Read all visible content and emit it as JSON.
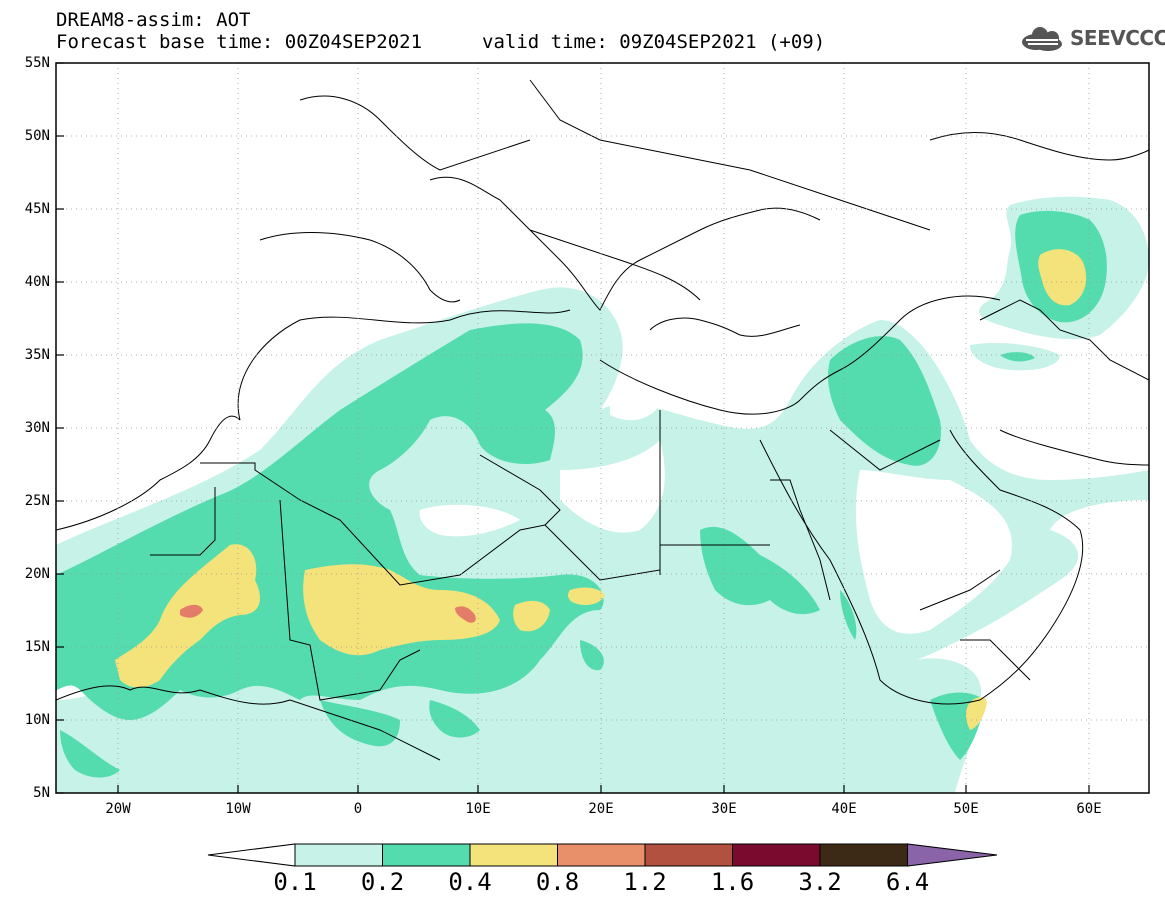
{
  "header": {
    "line1": "DREAM8-assim: AOT",
    "line2_base": "Forecast base time: 00Z04SEP2021",
    "line2_valid": "valid time: 09Z04SEP2021 (+09)"
  },
  "logo": {
    "text": "SEEVCCC",
    "icon": "cloud-icon"
  },
  "axes": {
    "lat_labels": [
      "55N",
      "50N",
      "45N",
      "40N",
      "35N",
      "30N",
      "25N",
      "20N",
      "15N",
      "10N",
      "5N"
    ],
    "lon_labels": [
      "20W",
      "10W",
      "0",
      "10E",
      "20E",
      "30E",
      "40E",
      "50E",
      "60E"
    ]
  },
  "colorbar": {
    "labels": [
      "0.1",
      "0.2",
      "0.4",
      "0.8",
      "1.2",
      "1.6",
      "3.2",
      "6.4"
    ],
    "colors": [
      "#ffffff",
      "#c6f2e8",
      "#55dcae",
      "#f4e27a",
      "#e8906a",
      "#b2513f",
      "#7a0a2e",
      "#3c2a16",
      "#8a64a8"
    ]
  },
  "map_colors": {
    "low": "#c6f2e8",
    "mid": "#55dcae",
    "high": "#f4e27a",
    "very_high": "#e47c6a"
  }
}
